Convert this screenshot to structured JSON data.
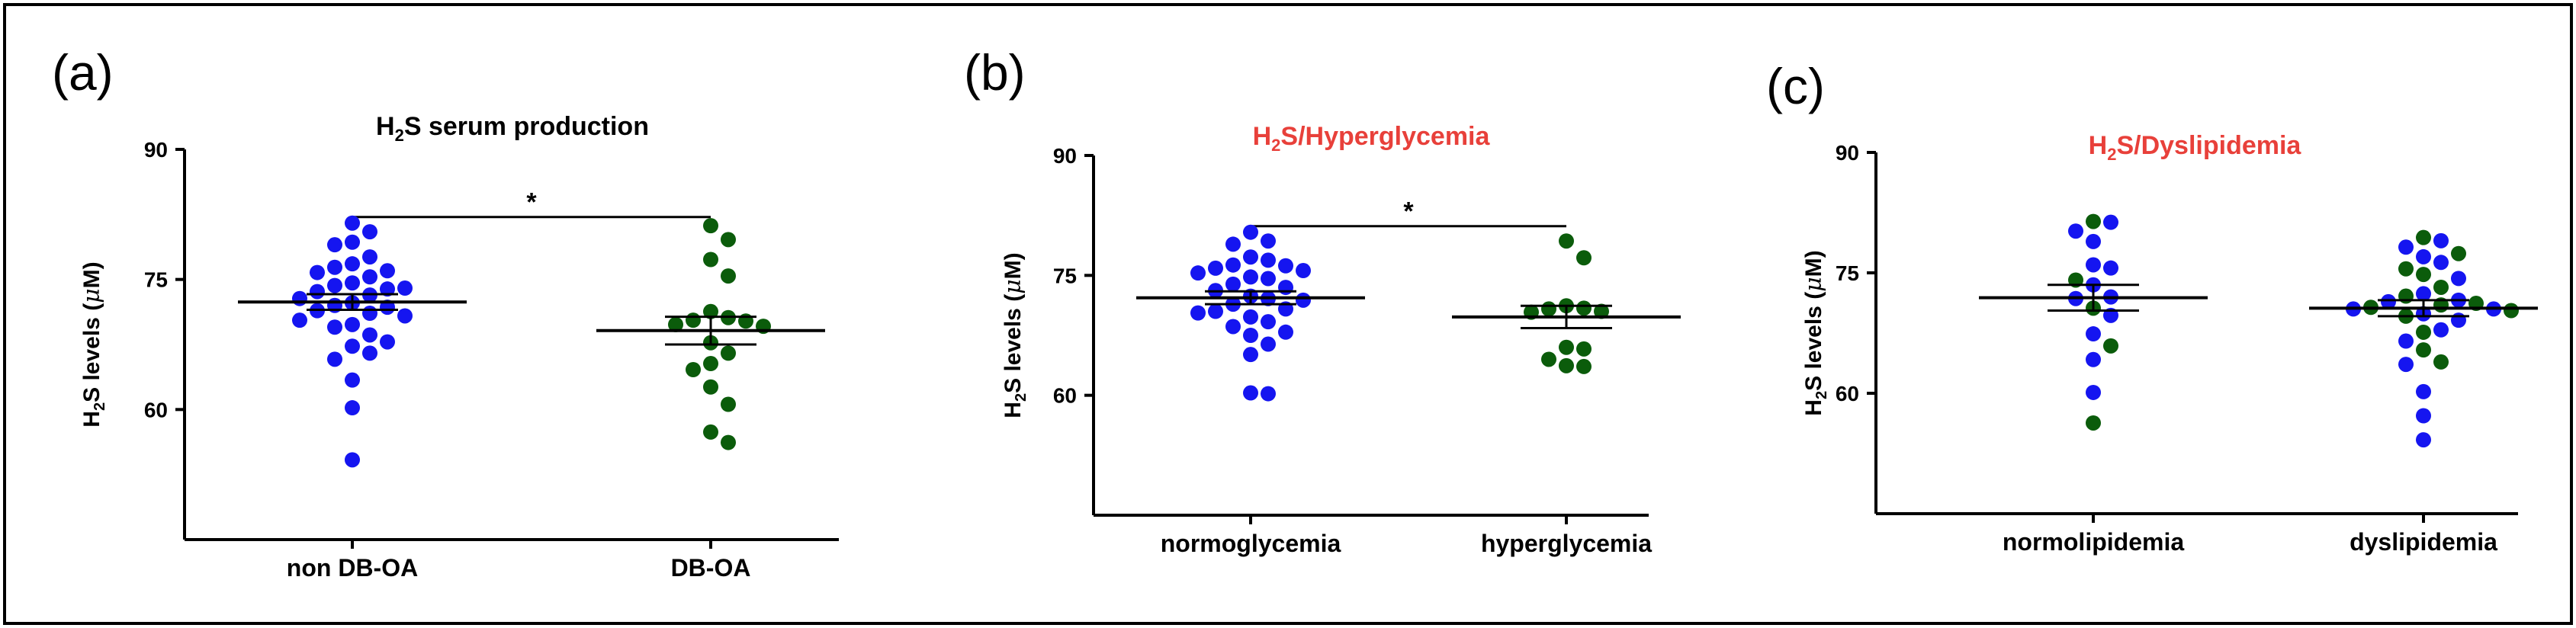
{
  "colors": {
    "blue": "#1515f0",
    "green": "#0b5c0b",
    "title_red": "#e8403a"
  },
  "chart_data": [
    {
      "type": "scatter",
      "panel": "(a)",
      "title": {
        "pre": "H",
        "sub": "2",
        "post": "S serum production"
      },
      "title_color": "black",
      "ylabel": {
        "pre": "H",
        "sub": "2",
        "post": "S levels (",
        "mu": "μ",
        "unit": "M)"
      },
      "ylim": [
        45,
        90
      ],
      "yticks": [
        "60",
        "75",
        "90"
      ],
      "categories": [
        "non DB-OA",
        "DB-OA"
      ],
      "significance": "*",
      "series": [
        {
          "name": "non DB-OA",
          "color": "blue",
          "values": [
            81.5,
            80.5,
            79.3,
            79.0,
            77.6,
            76.8,
            76.4,
            76.0,
            75.8,
            75.3,
            74.6,
            74.3,
            74.0,
            73.9,
            73.6,
            73.2,
            72.8,
            72.3,
            72.0,
            71.8,
            71.4,
            71.1,
            70.8,
            70.3,
            69.8,
            69.5,
            68.6,
            67.8,
            67.3,
            66.5,
            65.8,
            63.4,
            60.2,
            54.2
          ],
          "mean": 72.4,
          "sem": 0.9
        },
        {
          "name": "DB-OA",
          "color": "green",
          "values": [
            81.2,
            79.6,
            77.3,
            75.4,
            71.3,
            70.6,
            70.3,
            70.2,
            69.8,
            69.6,
            67.7,
            66.5,
            65.3,
            64.6,
            62.6,
            60.6,
            57.4,
            56.2
          ],
          "mean": 69.1,
          "sem": 1.6
        }
      ]
    },
    {
      "type": "scatter",
      "panel": "(b)",
      "title": {
        "pre": "H",
        "sub": "2",
        "post": "S/Hyperglycemia"
      },
      "title_color": "red",
      "ylabel": {
        "pre": "H",
        "sub": "2",
        "post": "S levels (",
        "mu": "μ",
        "unit": "M)"
      },
      "ylim": [
        45,
        90
      ],
      "yticks": [
        "60",
        "75",
        "90"
      ],
      "categories": [
        "normoglycemia",
        "hyperglycemia"
      ],
      "significance": "*",
      "series": [
        {
          "name": "normoglycemia",
          "color": "blue",
          "values": [
            80.4,
            79.3,
            78.9,
            77.3,
            76.9,
            76.3,
            76.2,
            75.9,
            75.6,
            75.3,
            74.8,
            74.6,
            73.9,
            73.5,
            73.1,
            72.4,
            72.1,
            71.9,
            71.4,
            70.8,
            70.5,
            70.3,
            69.8,
            69.2,
            68.6,
            67.9,
            67.5,
            66.4,
            65.1,
            60.3,
            60.2
          ],
          "mean": 72.2,
          "sem": 0.8
        },
        {
          "name": "hyperglycemia",
          "color": "green",
          "values": [
            79.3,
            77.2,
            71.2,
            70.9,
            70.8,
            70.5,
            70.4,
            66.0,
            65.8,
            64.5,
            63.7,
            63.6
          ],
          "mean": 69.8,
          "sem": 1.4
        }
      ]
    },
    {
      "type": "scatter",
      "panel": "(c)",
      "title": {
        "pre": "H",
        "sub": "2",
        "post": "S/Dyslipidemia"
      },
      "title_color": "red",
      "ylabel": {
        "pre": "H",
        "sub": "2",
        "post": "S levels (",
        "mu": "μ",
        "unit": "M)"
      },
      "ylim": [
        45,
        90
      ],
      "yticks": [
        "60",
        "75",
        "90"
      ],
      "categories": [
        "normolipidemia",
        "dyslipidemia"
      ],
      "significance": "",
      "series": [
        {
          "name": "normolipidemia",
          "color": "mixed",
          "points": [
            {
              "v": 81.4,
              "c": "green"
            },
            {
              "v": 81.3,
              "c": "blue"
            },
            {
              "v": 80.2,
              "c": "blue"
            },
            {
              "v": 78.9,
              "c": "blue"
            },
            {
              "v": 76.0,
              "c": "blue"
            },
            {
              "v": 75.6,
              "c": "blue"
            },
            {
              "v": 74.1,
              "c": "green"
            },
            {
              "v": 73.5,
              "c": "blue"
            },
            {
              "v": 72.0,
              "c": "blue"
            },
            {
              "v": 71.8,
              "c": "blue"
            },
            {
              "v": 70.6,
              "c": "green"
            },
            {
              "v": 69.7,
              "c": "blue"
            },
            {
              "v": 67.4,
              "c": "blue"
            },
            {
              "v": 65.9,
              "c": "green"
            },
            {
              "v": 64.2,
              "c": "blue"
            },
            {
              "v": 60.1,
              "c": "blue"
            },
            {
              "v": 56.3,
              "c": "green"
            }
          ],
          "mean": 71.9,
          "sem": 1.6
        },
        {
          "name": "dyslipidemia",
          "color": "mixed",
          "points": [
            {
              "v": 79.4,
              "c": "green"
            },
            {
              "v": 79.0,
              "c": "blue"
            },
            {
              "v": 78.2,
              "c": "blue"
            },
            {
              "v": 77.4,
              "c": "green"
            },
            {
              "v": 77.0,
              "c": "blue"
            },
            {
              "v": 76.3,
              "c": "blue"
            },
            {
              "v": 75.5,
              "c": "green"
            },
            {
              "v": 74.8,
              "c": "green"
            },
            {
              "v": 74.3,
              "c": "blue"
            },
            {
              "v": 73.2,
              "c": "green"
            },
            {
              "v": 72.4,
              "c": "blue"
            },
            {
              "v": 72.1,
              "c": "green"
            },
            {
              "v": 71.6,
              "c": "blue"
            },
            {
              "v": 71.4,
              "c": "blue"
            },
            {
              "v": 71.2,
              "c": "green"
            },
            {
              "v": 71.0,
              "c": "green"
            },
            {
              "v": 70.7,
              "c": "green"
            },
            {
              "v": 70.5,
              "c": "blue"
            },
            {
              "v": 70.5,
              "c": "blue"
            },
            {
              "v": 70.3,
              "c": "green"
            },
            {
              "v": 69.9,
              "c": "blue"
            },
            {
              "v": 69.6,
              "c": "green"
            },
            {
              "v": 69.1,
              "c": "blue"
            },
            {
              "v": 67.9,
              "c": "blue"
            },
            {
              "v": 67.6,
              "c": "green"
            },
            {
              "v": 66.5,
              "c": "blue"
            },
            {
              "v": 65.4,
              "c": "green"
            },
            {
              "v": 63.9,
              "c": "green"
            },
            {
              "v": 63.6,
              "c": "blue"
            },
            {
              "v": 60.2,
              "c": "blue"
            },
            {
              "v": 57.2,
              "c": "blue"
            },
            {
              "v": 54.2,
              "c": "blue"
            }
          ],
          "mean": 70.6,
          "sem": 1.0
        }
      ]
    }
  ]
}
